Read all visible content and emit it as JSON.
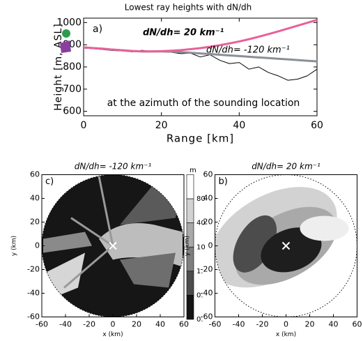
{
  "chart_data": [
    {
      "type": "line",
      "title": "Lowest ray heights with dN/dh",
      "panel_label": "a)",
      "xlabel": "Range [km]",
      "ylabel": "Height [m, ASL]",
      "xlim": [
        0,
        60
      ],
      "ylim": [
        580,
        1020
      ],
      "xticks": [
        0,
        20,
        40,
        60
      ],
      "yticks": [
        600,
        700,
        800,
        900,
        1000
      ],
      "x": [
        0,
        2.5,
        5,
        7.5,
        10,
        12.5,
        15,
        17.5,
        20,
        22.5,
        25,
        27.5,
        30,
        32.5,
        35,
        37.5,
        40,
        42.5,
        45,
        47.5,
        50,
        52.5,
        55,
        57.5,
        60
      ],
      "series": [
        {
          "name": "dN/dh= 20 km⁻¹",
          "color": "#e8609a",
          "line_width": 3,
          "values": [
            888,
            885,
            882,
            878,
            875,
            872,
            870,
            870,
            871,
            873,
            876,
            880,
            885,
            891,
            898,
            906,
            915,
            925,
            936,
            948,
            960,
            973,
            986,
            999,
            1012
          ]
        },
        {
          "name": "dN/dh= -120 km⁻¹",
          "color": "#8a8f94",
          "line_width": 3,
          "values": [
            888,
            885,
            882,
            878,
            875,
            872,
            870,
            870,
            870,
            869,
            867,
            864,
            861,
            858,
            855,
            852,
            849,
            846,
            843,
            840,
            837,
            834,
            831,
            828,
            825
          ]
        },
        {
          "color": "#000000",
          "line_width": 1,
          "values": [
            885,
            882,
            878,
            874,
            872,
            868,
            875,
            870,
            868,
            866,
            860,
            862,
            845,
            855,
            830,
            815,
            820,
            790,
            800,
            775,
            760,
            740,
            745,
            760,
            790
          ]
        }
      ],
      "annotation": "at the azimuth of the sounding location"
    },
    {
      "type": "map",
      "title": "dN/dh= -120 km⁻¹",
      "panel_label": "c)",
      "xlabel": "x (km)",
      "ylabel": "y (km)",
      "xlim": [
        -60,
        60
      ],
      "ylim": [
        -60,
        60
      ],
      "xticks": [
        -60,
        -40,
        -20,
        0,
        20,
        40,
        60
      ],
      "yticks": [
        -60,
        -40,
        -20,
        0,
        20,
        40,
        60
      ],
      "marker": {
        "x": 0,
        "y": 0
      },
      "style": "dark",
      "colorbar": {
        "unit": "m",
        "labels": [
          "80",
          "40",
          "10",
          "1.",
          "0.",
          "0."
        ],
        "colors": [
          "#ffffff",
          "#d2d2d2",
          "#a9a9a9",
          "#7e7e7e",
          "#4c4c4c",
          "#141414"
        ]
      }
    },
    {
      "type": "map",
      "title": "dN/dh= 20 km⁻¹",
      "panel_label": "b)",
      "xlabel": "x (km)",
      "ylabel": "y (km)",
      "xlim": [
        -60,
        60
      ],
      "ylim": [
        -60,
        60
      ],
      "xticks": [
        -60,
        -40,
        -20,
        0,
        20,
        40,
        60
      ],
      "yticks": [
        -60,
        -40,
        -20,
        0,
        20,
        40,
        60
      ],
      "marker": {
        "x": 0,
        "y": 0
      },
      "style": "light"
    }
  ]
}
